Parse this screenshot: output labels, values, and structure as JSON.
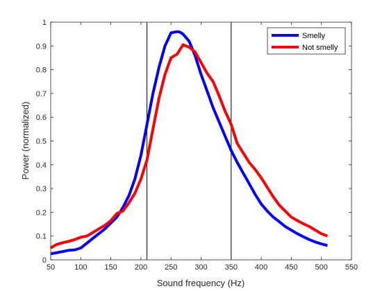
{
  "chart_data": {
    "type": "line",
    "title": "",
    "xlabel": "Sound frequency (Hz)",
    "ylabel": "Power (normalized)",
    "xlim": [
      50,
      550
    ],
    "ylim": [
      0,
      1
    ],
    "xticks": [
      50,
      100,
      150,
      200,
      250,
      300,
      350,
      400,
      450,
      500,
      550
    ],
    "yticks": [
      0,
      0.1,
      0.2,
      0.3,
      0.4,
      0.5,
      0.6,
      0.7,
      0.8,
      0.9,
      1
    ],
    "ytick_labels": [
      "0",
      "0.1",
      "0.2",
      "0.3",
      "0.4",
      "0.5",
      "0.6",
      "0.7",
      "0.8",
      "0.9",
      "1"
    ],
    "grid": false,
    "legend_position": "top-right",
    "vertical_lines": [
      210,
      350
    ],
    "series": [
      {
        "name": "Smelly",
        "color": "#0000ff",
        "x": [
          50,
          60,
          70,
          80,
          90,
          100,
          110,
          120,
          130,
          140,
          150,
          160,
          170,
          180,
          190,
          200,
          210,
          220,
          230,
          240,
          250,
          260,
          265,
          270,
          280,
          290,
          300,
          310,
          320,
          330,
          340,
          350,
          360,
          370,
          380,
          390,
          400,
          410,
          420,
          430,
          440,
          450,
          460,
          470,
          480,
          490,
          500,
          510
        ],
        "y": [
          0.025,
          0.03,
          0.035,
          0.04,
          0.042,
          0.05,
          0.07,
          0.09,
          0.11,
          0.13,
          0.155,
          0.18,
          0.22,
          0.27,
          0.34,
          0.44,
          0.57,
          0.7,
          0.81,
          0.9,
          0.955,
          0.96,
          0.958,
          0.95,
          0.92,
          0.86,
          0.78,
          0.71,
          0.64,
          0.58,
          0.52,
          0.46,
          0.41,
          0.365,
          0.32,
          0.275,
          0.235,
          0.205,
          0.18,
          0.16,
          0.14,
          0.125,
          0.11,
          0.097,
          0.085,
          0.075,
          0.067,
          0.06
        ]
      },
      {
        "name": "Not smelly",
        "color": "#ff0000",
        "x": [
          50,
          60,
          70,
          80,
          90,
          100,
          110,
          120,
          130,
          140,
          150,
          160,
          170,
          180,
          190,
          200,
          210,
          220,
          230,
          240,
          250,
          260,
          270,
          280,
          290,
          300,
          310,
          320,
          330,
          340,
          350,
          360,
          370,
          380,
          390,
          400,
          410,
          420,
          430,
          440,
          450,
          460,
          470,
          480,
          490,
          500,
          510
        ],
        "y": [
          0.05,
          0.065,
          0.072,
          0.078,
          0.085,
          0.095,
          0.1,
          0.115,
          0.13,
          0.145,
          0.165,
          0.195,
          0.205,
          0.24,
          0.28,
          0.34,
          0.42,
          0.55,
          0.68,
          0.78,
          0.85,
          0.865,
          0.905,
          0.895,
          0.875,
          0.83,
          0.785,
          0.75,
          0.69,
          0.625,
          0.57,
          0.49,
          0.45,
          0.41,
          0.38,
          0.345,
          0.305,
          0.265,
          0.23,
          0.205,
          0.18,
          0.165,
          0.152,
          0.14,
          0.125,
          0.11,
          0.1
        ]
      }
    ]
  }
}
